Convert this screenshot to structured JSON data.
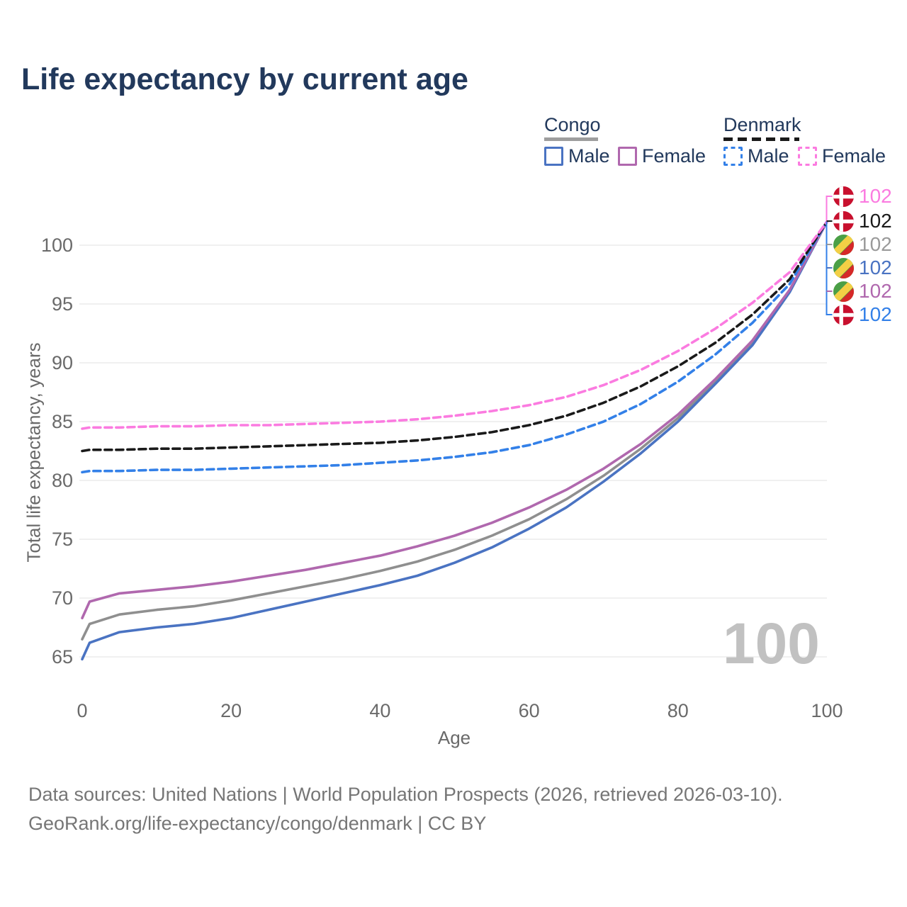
{
  "title": "Life expectancy by current age",
  "legend": {
    "groups": [
      {
        "label": "Congo",
        "underline_color": "#9e9e9e",
        "underline_style": "solid",
        "items": [
          {
            "label": "Male",
            "color": "#4a73c2",
            "dashed": false
          },
          {
            "label": "Female",
            "color": "#b068ae",
            "dashed": false
          }
        ]
      },
      {
        "label": "Denmark",
        "underline_color": "#1a1a1a",
        "underline_style": "dashed",
        "items": [
          {
            "label": "Male",
            "color": "#3380e8",
            "dashed": true
          },
          {
            "label": "Female",
            "color": "#fb7be0",
            "dashed": true
          }
        ]
      }
    ]
  },
  "chart_data": {
    "type": "line",
    "title": "Life expectancy by current age",
    "xlabel": "Age",
    "ylabel": "Total life expectancy, years",
    "x_ticks": [
      0,
      20,
      40,
      60,
      80,
      100
    ],
    "y_ticks": [
      65,
      70,
      75,
      80,
      85,
      90,
      95,
      100
    ],
    "xlim": [
      0,
      100
    ],
    "ylim": [
      63.5,
      103.5
    ],
    "grid": "horizontal",
    "x": [
      0,
      1,
      5,
      10,
      15,
      20,
      25,
      30,
      35,
      40,
      45,
      50,
      55,
      60,
      65,
      70,
      75,
      80,
      85,
      90,
      95,
      100
    ],
    "series": [
      {
        "name": "Congo Both sexes",
        "country": "Congo",
        "sex": "both",
        "color": "#8f8f8f",
        "dashed": false,
        "values": [
          66.5,
          67.8,
          68.6,
          69.0,
          69.3,
          69.8,
          70.4,
          71.0,
          71.6,
          72.3,
          73.1,
          74.1,
          75.3,
          76.7,
          78.4,
          80.4,
          82.7,
          85.3,
          88.4,
          91.7,
          96.1,
          102
        ]
      },
      {
        "name": "Congo Male",
        "country": "Congo",
        "sex": "male",
        "color": "#4a73c2",
        "dashed": false,
        "values": [
          64.8,
          66.2,
          67.1,
          67.5,
          67.8,
          68.3,
          69.0,
          69.7,
          70.4,
          71.1,
          71.9,
          73.0,
          74.3,
          75.9,
          77.7,
          79.9,
          82.3,
          85.0,
          88.2,
          91.5,
          96.0,
          102
        ]
      },
      {
        "name": "Congo Female",
        "country": "Congo",
        "sex": "female",
        "color": "#b068ae",
        "dashed": false,
        "values": [
          68.3,
          69.7,
          70.4,
          70.7,
          71.0,
          71.4,
          71.9,
          72.4,
          73.0,
          73.6,
          74.4,
          75.3,
          76.4,
          77.7,
          79.2,
          81.0,
          83.1,
          85.6,
          88.6,
          91.9,
          96.2,
          102
        ]
      },
      {
        "name": "Denmark Male",
        "country": "Denmark",
        "sex": "male",
        "color": "#3380e8",
        "dashed": true,
        "values": [
          80.7,
          80.8,
          80.8,
          80.9,
          80.9,
          81.0,
          81.1,
          81.2,
          81.3,
          81.5,
          81.7,
          82.0,
          82.4,
          83.0,
          83.9,
          85.0,
          86.5,
          88.4,
          90.7,
          93.4,
          96.7,
          102
        ]
      },
      {
        "name": "Denmark Both sexes",
        "country": "Denmark",
        "sex": "both",
        "color": "#1a1a1a",
        "dashed": true,
        "values": [
          82.5,
          82.6,
          82.6,
          82.7,
          82.7,
          82.8,
          82.9,
          83.0,
          83.1,
          83.2,
          83.4,
          83.7,
          84.1,
          84.7,
          85.5,
          86.6,
          88.0,
          89.7,
          91.7,
          94.1,
          97.1,
          102
        ]
      },
      {
        "name": "Denmark Female",
        "country": "Denmark",
        "sex": "female",
        "color": "#fb7be0",
        "dashed": true,
        "values": [
          84.4,
          84.5,
          84.5,
          84.6,
          84.6,
          84.7,
          84.7,
          84.8,
          84.9,
          85.0,
          85.2,
          85.5,
          85.9,
          86.4,
          87.1,
          88.1,
          89.4,
          91.0,
          92.9,
          95.1,
          97.7,
          102
        ]
      }
    ],
    "end_labels": [
      {
        "flag": "denmark",
        "value": "102",
        "color": "#fb7be0",
        "series": "Denmark Female"
      },
      {
        "flag": "denmark",
        "value": "102",
        "color": "#1a1a1a",
        "series": "Denmark Both sexes"
      },
      {
        "flag": "congo",
        "value": "102",
        "color": "#9a9a9a",
        "series": "Congo Both sexes"
      },
      {
        "flag": "congo",
        "value": "102",
        "color": "#4a73c2",
        "series": "Congo Male"
      },
      {
        "flag": "congo",
        "value": "102",
        "color": "#b068ae",
        "series": "Congo Female"
      },
      {
        "flag": "denmark",
        "value": "102",
        "color": "#3380e8",
        "series": "Denmark Male"
      }
    ],
    "legend_position": "top-right"
  },
  "watermark_age": "100",
  "footer": {
    "line1": "Data sources: United Nations | World Population Prospects (2026, retrieved 2026-03-10).",
    "line2": "GeoRank.org/life-expectancy/congo/denmark | CC BY"
  },
  "colors": {
    "title": "#22395c",
    "axis_text": "#6a6a6a",
    "gridline": "#ececec",
    "watermark": "#c1c1c1",
    "footer": "#767676",
    "denmark_flag_red": "#c8102e",
    "congo_green": "#4b9f46",
    "congo_yellow": "#f3cf45",
    "congo_red": "#d62828"
  }
}
